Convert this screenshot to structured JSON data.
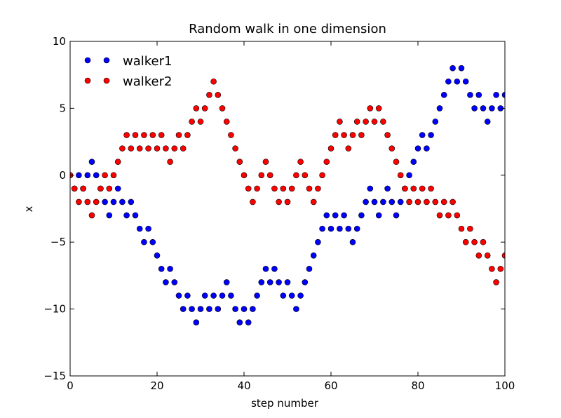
{
  "chart_data": {
    "type": "scatter",
    "title": "Random walk in one dimension",
    "x_label": "step number",
    "y_label": "x",
    "x": [
      0,
      1,
      2,
      3,
      4,
      5,
      6,
      7,
      8,
      9,
      10,
      11,
      12,
      13,
      14,
      15,
      16,
      17,
      18,
      19,
      20,
      21,
      22,
      23,
      24,
      25,
      26,
      27,
      28,
      29,
      30,
      31,
      32,
      33,
      34,
      35,
      36,
      37,
      38,
      39,
      40,
      41,
      42,
      43,
      44,
      45,
      46,
      47,
      48,
      49,
      50,
      51,
      52,
      53,
      54,
      55,
      56,
      57,
      58,
      59,
      60,
      61,
      62,
      63,
      64,
      65,
      66,
      67,
      68,
      69,
      70,
      71,
      72,
      73,
      74,
      75,
      76,
      77,
      78,
      79,
      80,
      81,
      82,
      83,
      84,
      85,
      86,
      87,
      88,
      89,
      90,
      91,
      92,
      93,
      94,
      95,
      96,
      97,
      98,
      99,
      100
    ],
    "series": [
      {
        "name": "walker1",
        "color": "#0000ff",
        "values": [
          0,
          -1,
          0,
          -1,
          0,
          1,
          0,
          -1,
          -2,
          -3,
          -2,
          -1,
          -2,
          -3,
          -2,
          -3,
          -4,
          -5,
          -4,
          -5,
          -6,
          -7,
          -8,
          -7,
          -8,
          -9,
          -10,
          -9,
          -10,
          -11,
          -10,
          -9,
          -10,
          -9,
          -10,
          -9,
          -8,
          -9,
          -10,
          -11,
          -10,
          -11,
          -10,
          -9,
          -8,
          -7,
          -8,
          -7,
          -8,
          -9,
          -8,
          -9,
          -10,
          -9,
          -8,
          -7,
          -6,
          -5,
          -4,
          -3,
          -4,
          -3,
          -4,
          -3,
          -4,
          -5,
          -4,
          -3,
          -2,
          -1,
          -2,
          -3,
          -2,
          -1,
          -2,
          -3,
          -2,
          -1,
          0,
          1,
          2,
          3,
          2,
          3,
          4,
          5,
          6,
          7,
          8,
          7,
          8,
          7,
          6,
          5,
          6,
          5,
          4,
          5,
          6,
          5,
          6
        ]
      },
      {
        "name": "walker2",
        "color": "#ff0000",
        "values": [
          0,
          -1,
          -2,
          -1,
          -2,
          -3,
          -2,
          -1,
          0,
          -1,
          0,
          1,
          2,
          3,
          2,
          3,
          2,
          3,
          2,
          3,
          2,
          3,
          2,
          1,
          2,
          3,
          2,
          3,
          4,
          5,
          4,
          5,
          6,
          7,
          6,
          5,
          4,
          3,
          2,
          1,
          0,
          -1,
          -2,
          -1,
          0,
          1,
          0,
          -1,
          -2,
          -1,
          -2,
          -1,
          0,
          1,
          0,
          -1,
          -2,
          -1,
          0,
          1,
          2,
          3,
          4,
          3,
          2,
          3,
          4,
          3,
          4,
          5,
          4,
          5,
          4,
          3,
          2,
          1,
          0,
          -1,
          -2,
          -1,
          -2,
          -1,
          -2,
          -1,
          -2,
          -3,
          -2,
          -3,
          -2,
          -3,
          -4,
          -5,
          -4,
          -5,
          -6,
          -5,
          -6,
          -7,
          -8,
          -7,
          -6
        ]
      }
    ],
    "xlim": [
      0,
      100
    ],
    "xticks": [
      0,
      20,
      40,
      60,
      80,
      100
    ],
    "ylim": [
      -15,
      10
    ],
    "yticks": [
      {
        "value": -15,
        "label": "−15"
      },
      {
        "value": -10,
        "label": "−10"
      },
      {
        "value": -5,
        "label": "−5"
      },
      0,
      5,
      10
    ],
    "grid": false,
    "legend": "upper left"
  }
}
